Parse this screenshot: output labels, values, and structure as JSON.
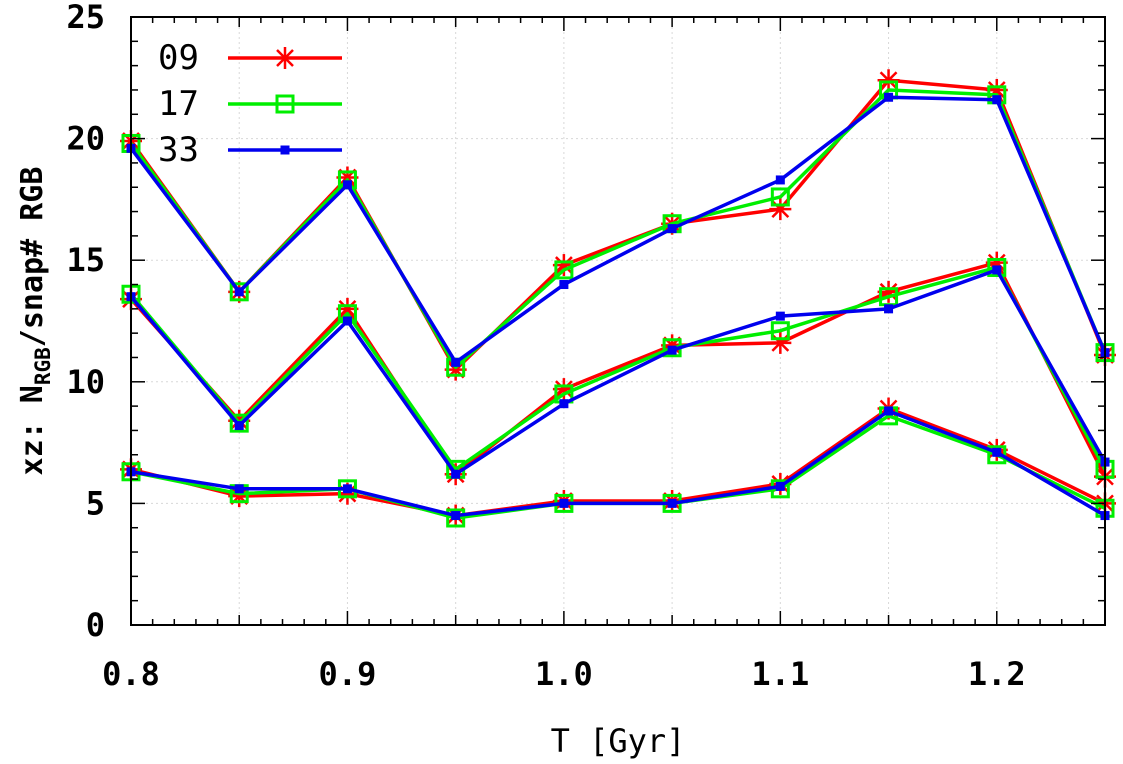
{
  "chart_data": {
    "type": "line",
    "xlabel": "T [Gyr]",
    "ylabel_parts": {
      "prefix": "xz: N",
      "subscript": "RGB",
      "suffix": "/snap# RGB"
    },
    "xlim": [
      0.8,
      1.25
    ],
    "ylim": [
      0,
      25
    ],
    "x_ticks": [
      0.8,
      0.9,
      1.0,
      1.1,
      1.2
    ],
    "x_tick_labels": [
      "0.8",
      "0.9",
      "1.0",
      "1.1",
      "1.2"
    ],
    "y_ticks": [
      0,
      5,
      10,
      15,
      20,
      25
    ],
    "y_tick_labels": [
      "0",
      "5",
      "10",
      "15",
      "20",
      "25"
    ],
    "grid": true,
    "legend_position": "top-left",
    "x": [
      0.8,
      0.85,
      0.9,
      0.95,
      1.0,
      1.05,
      1.1,
      1.15,
      1.2,
      1.25
    ],
    "series": [
      {
        "name": "09",
        "color": "#ff0000",
        "marker": "star",
        "groups": [
          [
            19.9,
            13.7,
            18.4,
            10.5,
            14.8,
            16.5,
            17.1,
            22.4,
            22.0,
            11.1
          ],
          [
            13.4,
            8.4,
            13.0,
            6.2,
            9.7,
            11.5,
            11.6,
            13.7,
            14.9,
            6.1
          ],
          [
            6.4,
            5.3,
            5.4,
            4.5,
            5.1,
            5.1,
            5.8,
            8.9,
            7.2,
            5.0
          ]
        ]
      },
      {
        "name": "17",
        "color": "#00ee00",
        "marker": "square",
        "groups": [
          [
            19.8,
            13.7,
            18.3,
            10.6,
            14.6,
            16.5,
            17.6,
            22.0,
            21.8,
            11.2
          ],
          [
            13.6,
            8.3,
            12.8,
            6.4,
            9.5,
            11.4,
            12.1,
            13.5,
            14.7,
            6.4
          ],
          [
            6.3,
            5.4,
            5.6,
            4.4,
            5.0,
            5.0,
            5.6,
            8.6,
            7.0,
            4.8
          ]
        ]
      },
      {
        "name": "33",
        "color": "#0000ee",
        "marker": "small-square",
        "groups": [
          [
            19.6,
            13.7,
            18.1,
            10.8,
            14.0,
            16.3,
            18.3,
            21.7,
            21.6,
            11.2
          ],
          [
            13.5,
            8.2,
            12.5,
            6.2,
            9.1,
            11.3,
            12.7,
            13.0,
            14.6,
            6.7
          ],
          [
            6.3,
            5.6,
            5.6,
            4.5,
            5.0,
            5.0,
            5.7,
            8.8,
            7.1,
            4.5
          ]
        ]
      }
    ]
  }
}
